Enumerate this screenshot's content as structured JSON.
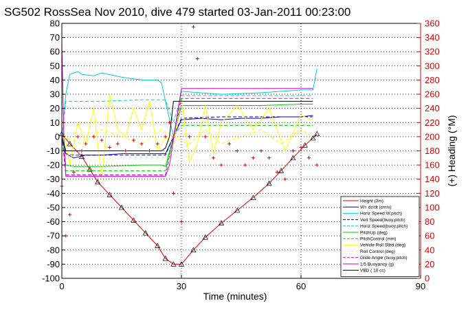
{
  "chart_data": {
    "type": "line",
    "title": "SG502 RossSea Nov 2010, dive 479 started 03-Jan-2011 00:23:00",
    "xlabel": "Time (minutes)",
    "ylabel_right": "(+) Heading (°M)",
    "xlim": [
      0,
      90
    ],
    "ylim": [
      -100,
      80
    ],
    "ylim_right": [
      0,
      360
    ],
    "x_ticks": [
      0,
      30,
      60,
      90
    ],
    "y_ticks": [
      -100,
      -90,
      -80,
      -70,
      -60,
      -50,
      -40,
      -30,
      -20,
      -10,
      0,
      10,
      20,
      30,
      40,
      50,
      60,
      70,
      80
    ],
    "y_ticks_right": [
      0,
      20,
      40,
      60,
      80,
      100,
      120,
      140,
      160,
      180,
      200,
      220,
      240,
      260,
      280,
      300,
      320,
      340,
      360
    ],
    "grid": true,
    "legend_position": "bottom-right",
    "colors": {
      "right_axis": "#dd0000",
      "left_axis": "#000000"
    },
    "series": [
      {
        "name": "Height (3m)",
        "color": "#dd0000",
        "style": "solid",
        "marker": "triangle",
        "x": [
          0,
          2,
          5,
          7,
          9,
          12,
          15,
          18,
          21,
          24,
          26,
          28,
          30,
          33,
          36,
          40,
          44,
          48,
          52,
          55,
          58,
          61,
          63,
          64
        ],
        "y": [
          2,
          -5,
          -14,
          -23,
          -32,
          -41,
          -50,
          -59,
          -68,
          -77,
          -86,
          -90,
          -90,
          -80,
          -71,
          -61,
          -52,
          -43,
          -33,
          -24,
          -15,
          -6,
          -1,
          2
        ]
      },
      {
        "name": "W= dz/dt (cm/s)",
        "color": "#0000cc",
        "style": "solid",
        "x": [
          0,
          1,
          3,
          6,
          10,
          15,
          20,
          25,
          26,
          28,
          30,
          35,
          40,
          45,
          50,
          55,
          60,
          63
        ],
        "y": [
          0,
          -12,
          -15,
          -13,
          -13,
          -12,
          -12,
          -12,
          -12,
          0,
          12,
          13,
          12,
          13,
          13,
          14,
          14,
          15
        ]
      },
      {
        "name": "Horiz Speed:W,pitch)",
        "color": "#00cccc",
        "style": "solid",
        "x": [
          0,
          1,
          2,
          3,
          4,
          5,
          8,
          10,
          15,
          20,
          24,
          25,
          26,
          28,
          30,
          40,
          50,
          60,
          63,
          64
        ],
        "y": [
          0,
          30,
          44,
          45,
          46,
          44,
          43,
          45,
          42,
          40,
          40,
          38,
          25,
          0,
          32,
          30,
          31,
          33,
          33,
          48
        ]
      },
      {
        "name": "Vert Speed(buoy,pitch)",
        "color": "#0000cc",
        "style": "dash",
        "x": [
          0,
          1,
          3,
          10,
          20,
          25,
          26,
          28,
          30,
          40,
          50,
          60,
          63
        ],
        "y": [
          0,
          -12,
          -13,
          -13,
          -13,
          -13,
          -13,
          0,
          13,
          14,
          14,
          14,
          14
        ]
      },
      {
        "name": "Horiz Speed(buoy,pitch)",
        "color": "#00cccc",
        "style": "dash",
        "x": [
          0,
          1,
          3,
          10,
          20,
          25,
          26,
          28,
          30,
          40,
          50,
          60,
          63
        ],
        "y": [
          0,
          25,
          25,
          25,
          26,
          26,
          26,
          10,
          29,
          29,
          29,
          29,
          29
        ]
      },
      {
        "name": "PitchUp (deg)",
        "color": "#00cc00",
        "style": "solid",
        "x": [
          0,
          1,
          3,
          10,
          20,
          25,
          26,
          28,
          30,
          40,
          50,
          60,
          63
        ],
        "y": [
          0,
          -20,
          -21,
          -21,
          -20,
          -20,
          -21,
          0,
          22,
          22,
          22,
          23,
          23
        ]
      },
      {
        "name": "PitchControl (mm)",
        "color": "#00cc00",
        "style": "dash",
        "x": [
          0,
          1,
          3,
          10,
          20,
          25,
          26,
          28,
          30,
          40,
          50,
          60,
          63
        ],
        "y": [
          0,
          -24,
          -24,
          -24,
          -24,
          -24,
          -24,
          0,
          8,
          8,
          8,
          8,
          8
        ]
      },
      {
        "name": "Vehicle Roll Stbd (deg)",
        "color": "#ffff00",
        "style": "solid",
        "x": [
          0,
          2,
          4,
          6,
          8,
          10,
          12,
          14,
          16,
          18,
          20,
          22,
          24,
          26,
          28,
          30,
          32,
          34,
          36,
          38,
          40,
          44,
          48,
          52,
          56,
          60,
          63
        ],
        "y": [
          12,
          -20,
          10,
          -5,
          20,
          -30,
          30,
          5,
          0,
          20,
          5,
          25,
          -10,
          0,
          -5,
          28,
          -18,
          -5,
          22,
          -12,
          10,
          22,
          5,
          20,
          -10,
          15,
          12
        ]
      },
      {
        "name": "Roll Control (deg)",
        "color": "#ffff00",
        "style": "dash",
        "x": [
          0,
          5,
          10,
          15,
          20,
          25,
          28,
          32,
          36,
          40,
          45,
          50,
          55,
          60,
          63
        ],
        "y": [
          0,
          -5,
          5,
          0,
          -5,
          5,
          0,
          -5,
          5,
          -5,
          0,
          5,
          -5,
          5,
          0
        ]
      },
      {
        "name": "Glide Angle (buoy,pitch)",
        "color": "#cc00cc",
        "style": "dash",
        "x": [
          0,
          1,
          3,
          10,
          20,
          25,
          26,
          28,
          30,
          40,
          50,
          60,
          63
        ],
        "y": [
          0,
          -27,
          -27,
          -27,
          -27,
          -27,
          -27,
          0,
          27,
          27,
          27,
          27,
          27
        ]
      },
      {
        "name": "1/5 Buoyancy (g)",
        "color": "#cc00cc",
        "style": "solid",
        "x": [
          0,
          0.5,
          1,
          3,
          10,
          20,
          25,
          26,
          27,
          30,
          40,
          50,
          60,
          63
        ],
        "y": [
          65,
          0,
          -28,
          -28,
          -28,
          -28,
          -28,
          -28,
          -20,
          34,
          34,
          34,
          34,
          34
        ]
      },
      {
        "name": "VBD ( 10 cc)",
        "color": "#000000",
        "style": "solid",
        "x": [
          0,
          0.5,
          1,
          25,
          26,
          27,
          28,
          63
        ],
        "y": [
          0,
          -5,
          -10,
          -10,
          -8,
          0,
          25,
          25
        ]
      }
    ],
    "heading_series": {
      "name": "Heading",
      "color": "#dd0000",
      "marker": "plus",
      "axis": "right",
      "x": [
        0,
        1,
        2,
        3,
        4,
        5,
        6,
        8,
        10,
        12,
        14,
        16,
        18,
        20,
        22,
        24,
        26,
        27,
        28,
        30,
        32,
        33,
        34,
        36,
        38,
        40,
        42,
        44,
        46,
        48,
        50,
        52,
        54,
        56,
        58,
        60,
        62,
        64
      ],
      "y": [
        130,
        60,
        90,
        150,
        200,
        180,
        190,
        200,
        195,
        185,
        190,
        180,
        195,
        190,
        180,
        190,
        200,
        220,
        120,
        80,
        200,
        355,
        310,
        200,
        170,
        160,
        190,
        180,
        160,
        170,
        180,
        170,
        150,
        140,
        180,
        185,
        170,
        160
      ]
    }
  }
}
